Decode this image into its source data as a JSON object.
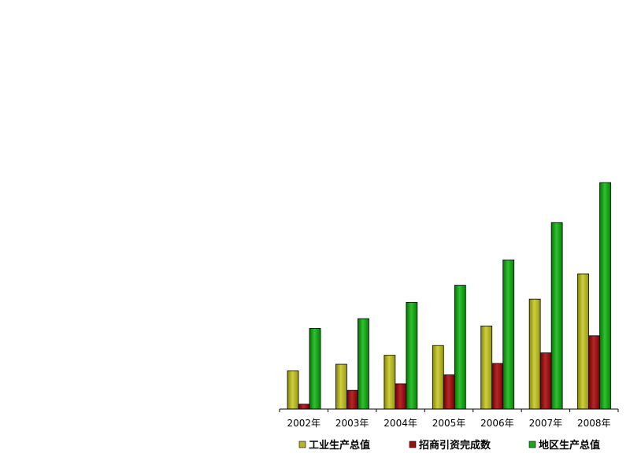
{
  "chart_data": {
    "type": "bar",
    "categories": [
      "2002年",
      "2003年",
      "2004年",
      "2005年",
      "2006年",
      "2007年",
      "2008年"
    ],
    "series": [
      {
        "name": "工业生产总值",
        "color": "#b5b52a",
        "values": [
          47,
          55,
          66,
          78,
          102,
          135,
          166
        ]
      },
      {
        "name": "招商引资完成数",
        "color": "#9a1010",
        "values": [
          6,
          23,
          31,
          42,
          56,
          69,
          90
        ]
      },
      {
        "name": "地区生产总值",
        "color": "#1aa51a",
        "values": [
          99,
          111,
          131,
          152,
          183,
          229,
          278
        ]
      }
    ],
    "ylim": [
      0,
      280
    ],
    "grid": false,
    "legend": "bottom",
    "axes_visible": {
      "y": false,
      "x": true
    }
  }
}
